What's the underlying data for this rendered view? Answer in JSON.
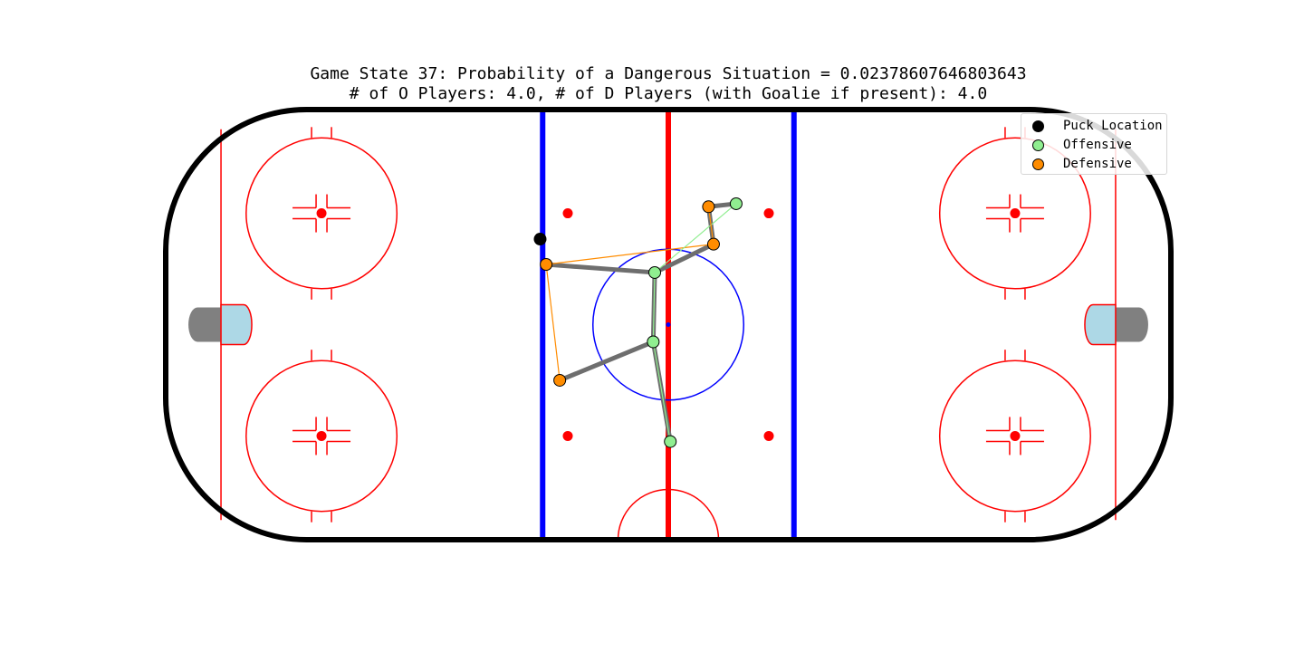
{
  "chart_data": {
    "type": "scatter",
    "title": "Game State 37: Probability of a Dangerous Situation = 0.02378607646803643",
    "subtitle": "# of O Players: 4.0, # of D Players (with Goalie if present): 4.0",
    "legend": {
      "placement": "top-right",
      "entries": [
        {
          "label": "Puck Location",
          "color": "#000000"
        },
        {
          "label": "Offensive",
          "color": "#90ee90"
        },
        {
          "label": "Defensive",
          "color": "#ff8c00"
        }
      ]
    },
    "rink": {
      "x_range": [
        -100,
        100
      ],
      "y_range": [
        -42.5,
        42.5
      ],
      "boards_color": "#000000",
      "red_line_color": "#ff0000",
      "blue_line_color": "#0000ff",
      "crease_color": "#add8e6",
      "net_color": "#808080"
    },
    "puck": {
      "x": -25.5,
      "y": 16.9
    },
    "offensive": [
      {
        "x": 13.5,
        "y": 23.9
      },
      {
        "x": -2.7,
        "y": 10.3
      },
      {
        "x": -3.0,
        "y": -3.4
      },
      {
        "x": 0.4,
        "y": -23.1
      }
    ],
    "defensive": [
      {
        "x": -24.3,
        "y": 11.9
      },
      {
        "x": 8.0,
        "y": 23.3
      },
      {
        "x": 9.0,
        "y": 15.9
      },
      {
        "x": -21.6,
        "y": -11.0
      }
    ],
    "edges": [
      {
        "from": "o0",
        "to": "d1",
        "width": 5
      },
      {
        "from": "d1",
        "to": "d2",
        "width": 5
      },
      {
        "from": "d2",
        "to": "o1",
        "width": 5
      },
      {
        "from": "o1",
        "to": "d0",
        "width": 5
      },
      {
        "from": "o1",
        "to": "o2",
        "width": 5
      },
      {
        "from": "o2",
        "to": "d3",
        "width": 5
      },
      {
        "from": "o2",
        "to": "o3",
        "width": 5
      }
    ],
    "thin_edges": [
      {
        "from": "d0",
        "to": "d2",
        "color": "#ff8c00"
      },
      {
        "from": "d0",
        "to": "d3",
        "color": "#ff8c00"
      },
      {
        "from": "o0",
        "to": "o1",
        "color": "#90ee90"
      },
      {
        "from": "d1",
        "to": "d2",
        "color": "#ff8c00"
      },
      {
        "from": "o1",
        "to": "o2",
        "color": "#90ee90"
      },
      {
        "from": "o2",
        "to": "o3",
        "color": "#90ee90"
      }
    ]
  }
}
